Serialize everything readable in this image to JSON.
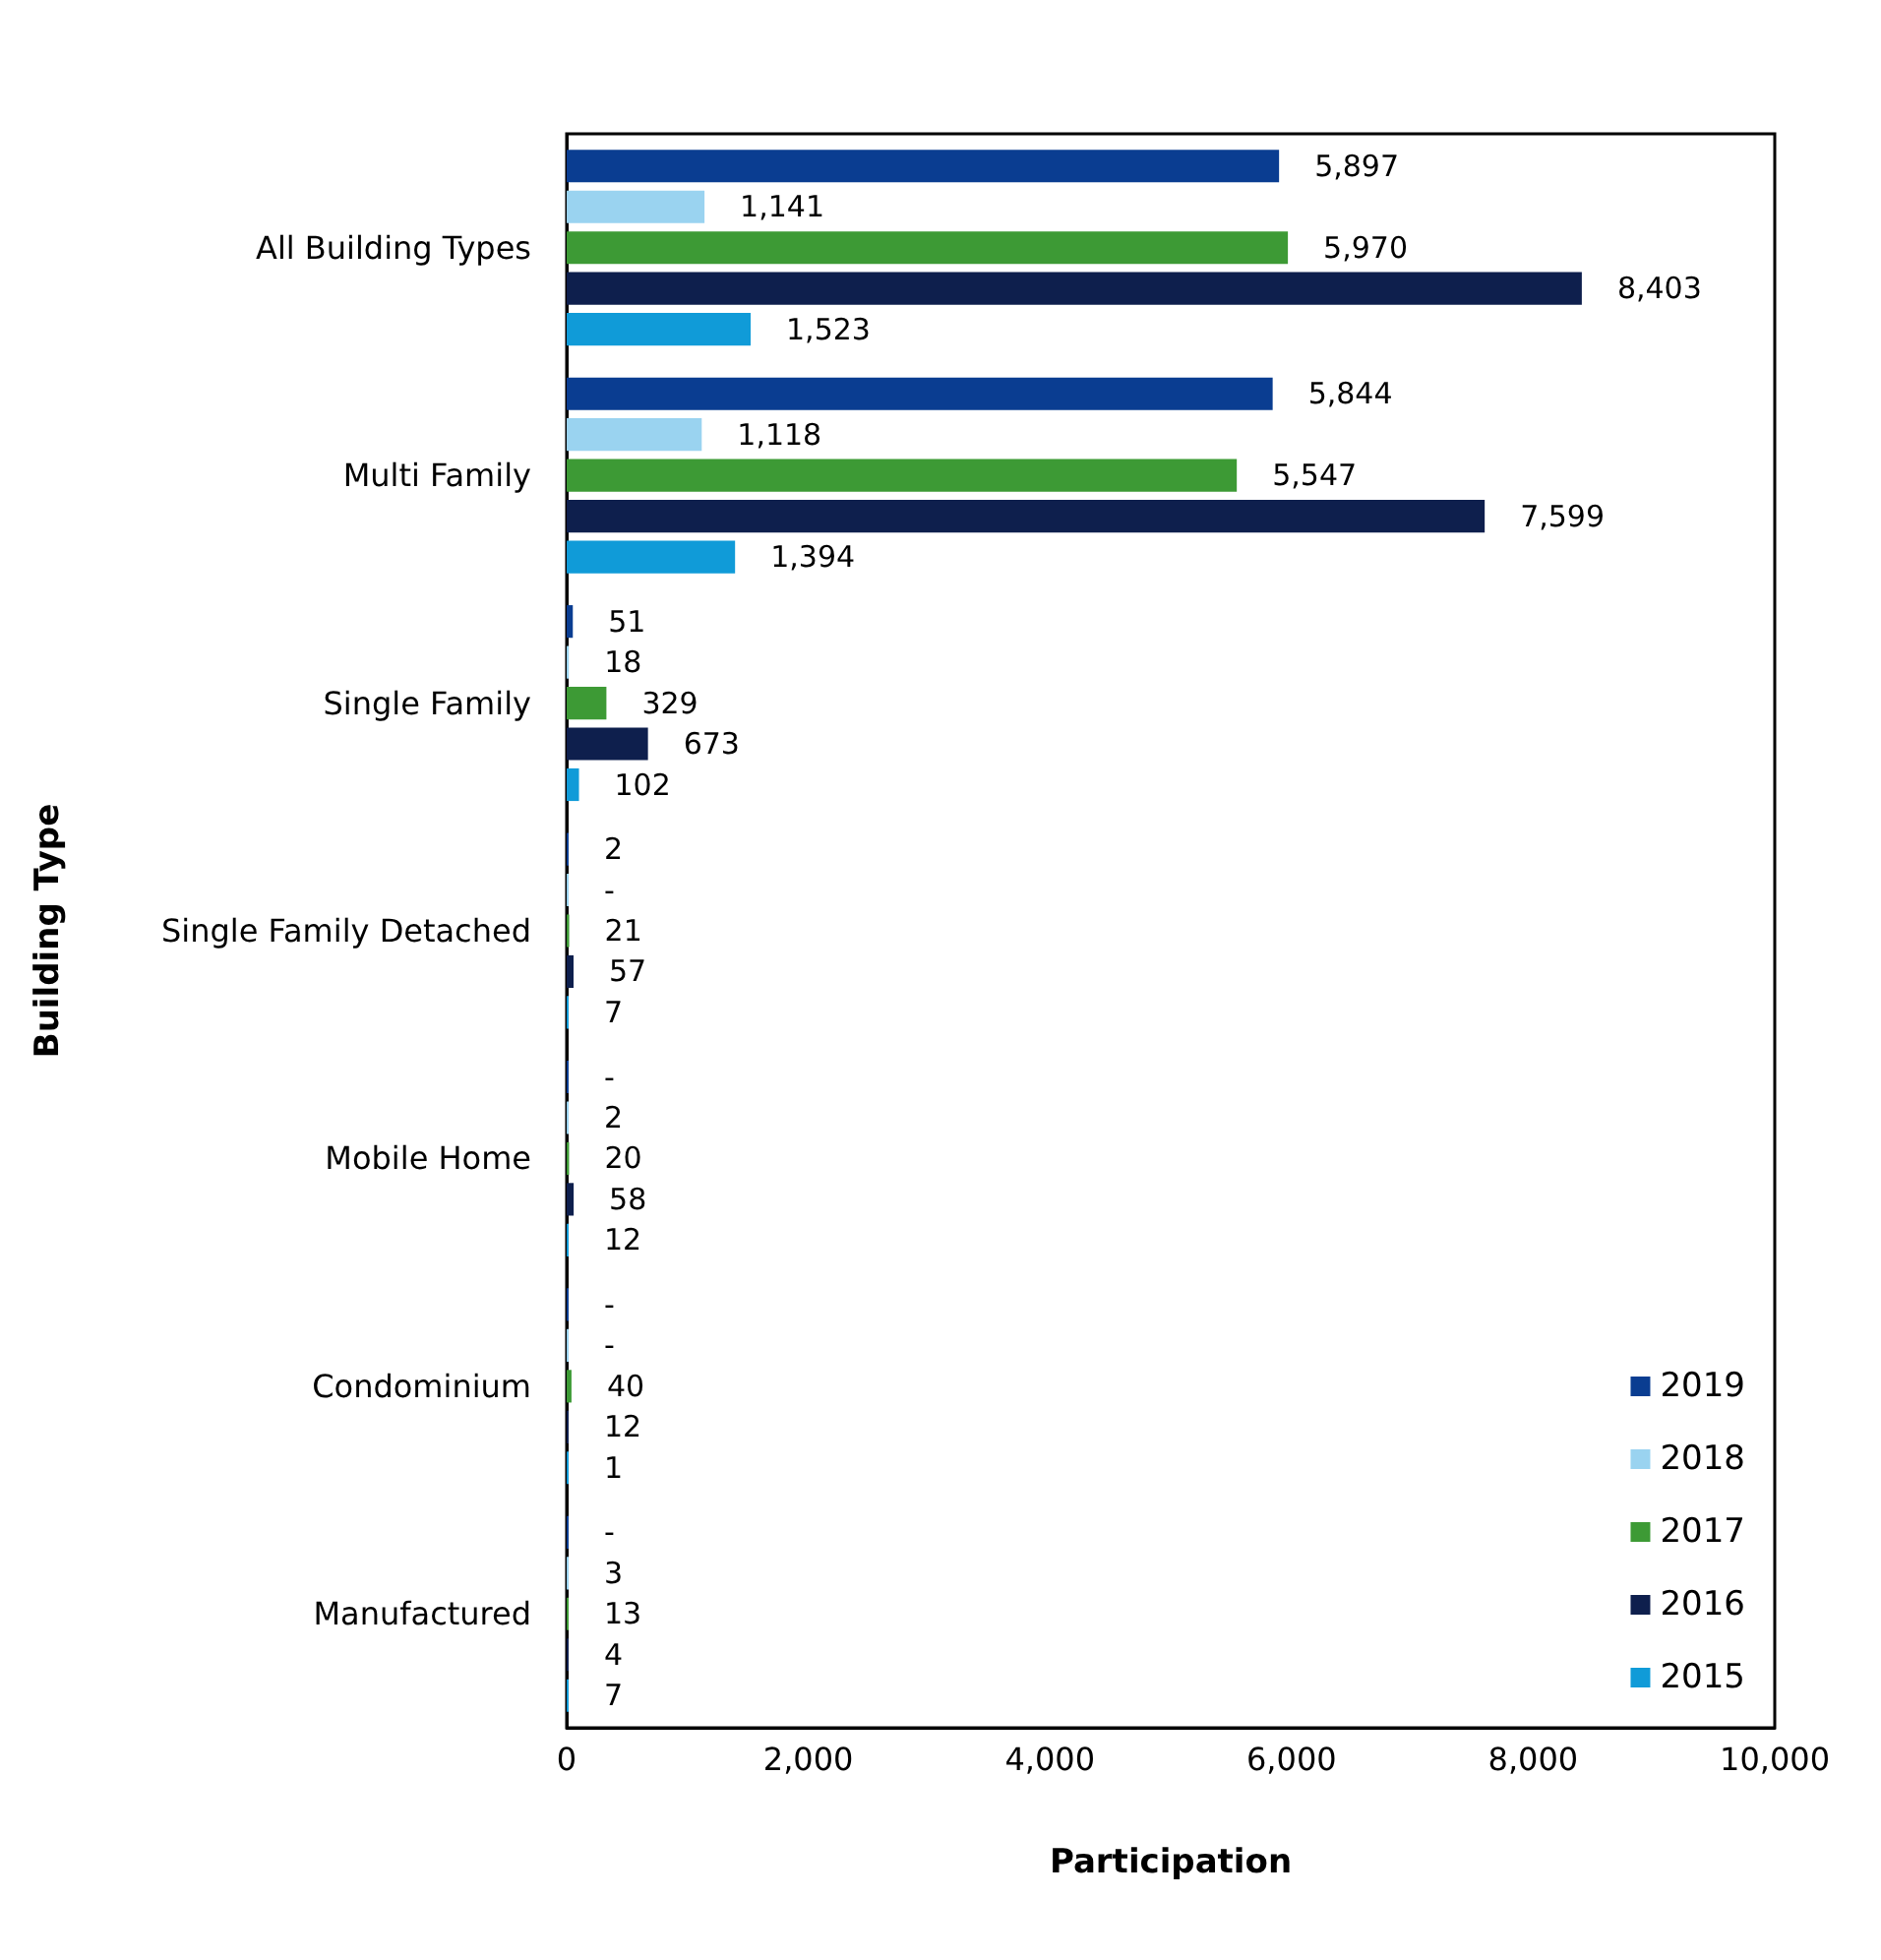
{
  "chart_data": {
    "type": "bar",
    "orientation": "horizontal",
    "xlabel": "Participation",
    "ylabel": "Building Type",
    "categories": [
      "All Building Types",
      "Multi Family",
      "Single Family",
      "Single Family Detached",
      "Mobile Home",
      "Condominium",
      "Manufactured"
    ],
    "series": [
      {
        "name": "2019",
        "color": "#0a3d91",
        "values": [
          5897,
          5844,
          51,
          2,
          0,
          0,
          0
        ],
        "value_labels": [
          "5,897",
          "5,844",
          "51",
          "2",
          "-",
          "-",
          "-"
        ]
      },
      {
        "name": "2018",
        "color": "#9ad3f0",
        "values": [
          1141,
          1118,
          18,
          0,
          2,
          0,
          3
        ],
        "value_labels": [
          "1,141",
          "1,118",
          "18",
          "-",
          "2",
          "-",
          "3"
        ]
      },
      {
        "name": "2017",
        "color": "#3d9a35",
        "values": [
          5970,
          5547,
          329,
          21,
          20,
          40,
          13
        ],
        "value_labels": [
          "5,970",
          "5,547",
          "329",
          "21",
          "20",
          "40",
          "13"
        ]
      },
      {
        "name": "2016",
        "color": "#0e1f4d",
        "values": [
          8403,
          7599,
          673,
          57,
          58,
          12,
          4
        ],
        "value_labels": [
          "8,403",
          "7,599",
          "673",
          "57",
          "58",
          "12",
          "4"
        ]
      },
      {
        "name": "2015",
        "color": "#109bd8",
        "values": [
          1523,
          1394,
          102,
          7,
          12,
          1,
          7
        ],
        "value_labels": [
          "1,523",
          "1,394",
          "102",
          "7",
          "12",
          "1",
          "7"
        ]
      }
    ],
    "xlim": [
      0,
      10000
    ],
    "xticks": [
      0,
      {
        "value": 2000,
        "label": "2,000"
      },
      {
        "value": 4000,
        "label": "4,000"
      },
      {
        "value": 6000,
        "label": "6,000"
      },
      {
        "value": 8000,
        "label": "8,000"
      },
      {
        "value": 10000,
        "label": "10,000"
      }
    ],
    "grid": false,
    "legend": "bottom right"
  }
}
